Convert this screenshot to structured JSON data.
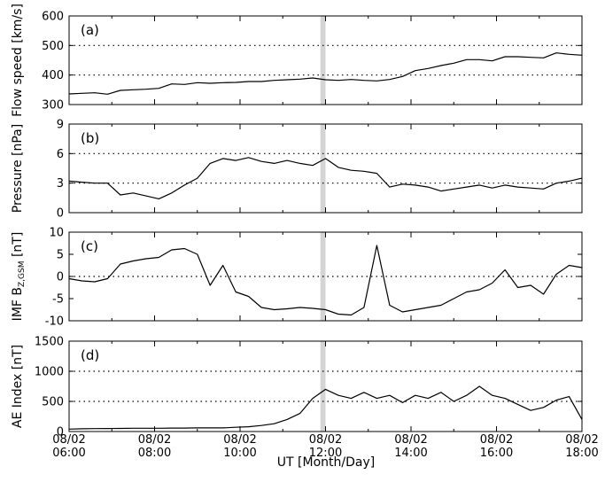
{
  "figure": {
    "x_axis": {
      "label": "UT [Month/Day]",
      "tick_top": [
        "08/02",
        "08/02",
        "08/02",
        "08/02",
        "08/02",
        "08/02",
        "08/02"
      ],
      "tick_bottom": [
        "06:00",
        "08:00",
        "10:00",
        "12:00",
        "14:00",
        "16:00",
        "18:00"
      ]
    }
  },
  "chart_data": [
    {
      "type": "line",
      "panel_label": "(a)",
      "ylabel": "Flow speed [km/s]",
      "ylim": [
        300,
        600
      ],
      "yticks": [
        "300",
        "400",
        "500",
        "600"
      ],
      "reference_lines": [
        400,
        500
      ],
      "highlight_band": {
        "start": 11.88,
        "end": 12.0,
        "color": "#d4d4d4"
      },
      "series": [
        {
          "x": [
            6.0,
            6.3,
            6.6,
            6.9,
            7.2,
            7.5,
            7.8,
            8.1,
            8.4,
            8.7,
            9.0,
            9.3,
            9.6,
            9.9,
            10.2,
            10.5,
            10.8,
            11.1,
            11.4,
            11.7,
            12.0,
            12.3,
            12.6,
            12.9,
            13.2,
            13.5,
            13.8,
            14.1,
            14.4,
            14.7,
            15.0,
            15.3,
            15.6,
            15.9,
            16.2,
            16.5,
            16.8,
            17.1,
            17.4,
            17.7,
            18.0
          ],
          "values": [
            336,
            338,
            340,
            335,
            348,
            350,
            352,
            355,
            370,
            368,
            374,
            372,
            374,
            375,
            378,
            378,
            382,
            384,
            386,
            390,
            384,
            382,
            385,
            382,
            380,
            385,
            395,
            415,
            422,
            432,
            440,
            452,
            452,
            448,
            462,
            462,
            460,
            458,
            475,
            470,
            467
          ]
        }
      ]
    },
    {
      "type": "line",
      "panel_label": "(b)",
      "ylabel": "Pressure [nPa]",
      "ylim": [
        0,
        9
      ],
      "yticks": [
        "0",
        "3",
        "6",
        "9"
      ],
      "reference_lines": [
        3,
        6
      ],
      "highlight_band": {
        "start": 11.88,
        "end": 12.0,
        "color": "#d4d4d4"
      },
      "series": [
        {
          "x": [
            6.0,
            6.3,
            6.6,
            6.9,
            7.2,
            7.5,
            7.8,
            8.1,
            8.4,
            8.7,
            9.0,
            9.3,
            9.6,
            9.9,
            10.2,
            10.5,
            10.8,
            11.1,
            11.4,
            11.7,
            12.0,
            12.3,
            12.6,
            12.9,
            13.2,
            13.5,
            13.8,
            14.1,
            14.4,
            14.7,
            15.0,
            15.3,
            15.6,
            15.9,
            16.2,
            16.5,
            16.8,
            17.1,
            17.4,
            17.7,
            18.0
          ],
          "values": [
            3.2,
            3.1,
            3.0,
            3.0,
            1.8,
            2.0,
            1.7,
            1.4,
            2.0,
            2.8,
            3.5,
            5.0,
            5.5,
            5.3,
            5.6,
            5.2,
            5.0,
            5.3,
            5.0,
            4.8,
            5.5,
            4.6,
            4.3,
            4.2,
            4.0,
            2.6,
            2.9,
            2.8,
            2.6,
            2.2,
            2.4,
            2.6,
            2.8,
            2.5,
            2.8,
            2.6,
            2.5,
            2.4,
            3.0,
            3.2,
            3.5
          ]
        }
      ]
    },
    {
      "type": "line",
      "panel_label": "(c)",
      "ylabel_main": "IMF B",
      "ylabel_sub": "Z,GSM",
      "ylabel_unit": " [nT]",
      "ylim": [
        -10,
        10
      ],
      "yticks": [
        "-10",
        "-5",
        "0",
        "5",
        "10"
      ],
      "reference_lines": [
        0
      ],
      "highlight_band": {
        "start": 11.88,
        "end": 12.0,
        "color": "#d4d4d4"
      },
      "series": [
        {
          "x": [
            6.0,
            6.3,
            6.6,
            6.9,
            7.2,
            7.5,
            7.8,
            8.1,
            8.4,
            8.7,
            9.0,
            9.3,
            9.6,
            9.9,
            10.2,
            10.5,
            10.8,
            11.1,
            11.4,
            11.7,
            12.0,
            12.3,
            12.6,
            12.9,
            13.2,
            13.5,
            13.8,
            14.1,
            14.4,
            14.7,
            15.0,
            15.3,
            15.6,
            15.9,
            16.2,
            16.5,
            16.8,
            17.1,
            17.4,
            17.7,
            18.0
          ],
          "values": [
            -0.5,
            -1.0,
            -1.2,
            -0.5,
            2.8,
            3.5,
            4.0,
            4.3,
            6.0,
            6.3,
            5.0,
            -2.0,
            2.5,
            -3.5,
            -4.5,
            -7.0,
            -7.5,
            -7.3,
            -7.0,
            -7.2,
            -7.5,
            -8.5,
            -8.7,
            -7.0,
            7.0,
            -6.5,
            -8.0,
            -7.5,
            -7.0,
            -6.5,
            -5.0,
            -3.5,
            -3.0,
            -1.5,
            1.5,
            -2.5,
            -2.0,
            -4.0,
            0.5,
            2.5,
            2.0
          ]
        }
      ]
    },
    {
      "type": "line",
      "panel_label": "(d)",
      "ylabel": "AE Index [nT]",
      "ylim": [
        0,
        1500
      ],
      "yticks": [
        "0",
        "500",
        "1000",
        "1500"
      ],
      "reference_lines": [
        500,
        1000
      ],
      "highlight_band": {
        "start": 11.88,
        "end": 12.0,
        "color": "#d4d4d4"
      },
      "series": [
        {
          "x": [
            6.0,
            6.3,
            6.6,
            6.9,
            7.2,
            7.5,
            7.8,
            8.1,
            8.4,
            8.7,
            9.0,
            9.3,
            9.6,
            9.9,
            10.2,
            10.5,
            10.8,
            11.1,
            11.4,
            11.7,
            12.0,
            12.3,
            12.6,
            12.9,
            13.2,
            13.5,
            13.8,
            14.1,
            14.4,
            14.7,
            15.0,
            15.3,
            15.6,
            15.9,
            16.2,
            16.5,
            16.8,
            17.1,
            17.4,
            17.7,
            18.0
          ],
          "values": [
            40,
            45,
            48,
            50,
            52,
            55,
            55,
            55,
            57,
            58,
            60,
            60,
            60,
            70,
            80,
            100,
            130,
            200,
            300,
            550,
            700,
            600,
            550,
            650,
            550,
            600,
            480,
            600,
            550,
            650,
            500,
            600,
            750,
            600,
            550,
            450,
            350,
            400,
            520,
            580,
            200
          ]
        }
      ]
    }
  ]
}
